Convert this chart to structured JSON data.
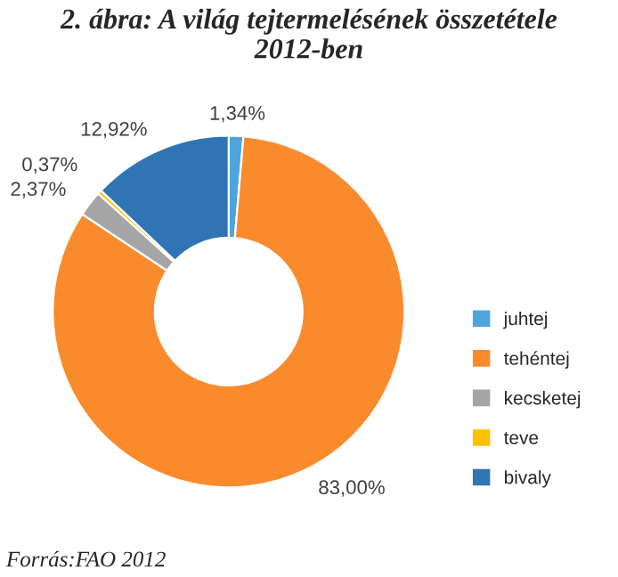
{
  "chart_data": {
    "type": "donut",
    "title": "2. ábra: A világ tejtermelésének összetétele\n2012-ben",
    "categories": [
      "juhtej",
      "tehéntej",
      "kecsketej",
      "teve",
      "bivaly"
    ],
    "values": [
      1.34,
      83.0,
      2.37,
      0.37,
      12.92
    ],
    "value_labels": [
      "1,34%",
      "83,00%",
      "2,37%",
      "0,37%",
      "12,92%"
    ],
    "colors": [
      "#4ea5dc",
      "#f98b2d",
      "#a5a5a5",
      "#ffc000",
      "#2f74b5"
    ],
    "legend": "right",
    "annotations": [
      "Forrás:FAO 2012"
    ]
  }
}
